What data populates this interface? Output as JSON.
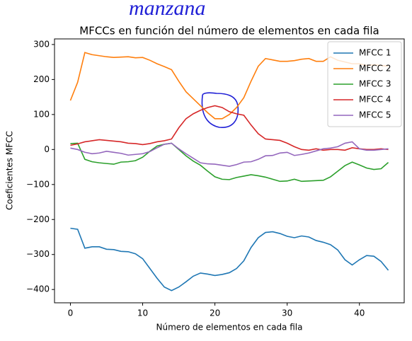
{
  "annotation": "manzana",
  "chart_data": {
    "type": "line",
    "title": "MFCCs en función del número de elementos en cada fila",
    "xlabel": "Número de elementos en cada fila",
    "ylabel": "Coeficientes MFCC",
    "x": [
      0,
      1,
      2,
      3,
      4,
      5,
      6,
      7,
      8,
      9,
      10,
      11,
      12,
      13,
      14,
      15,
      16,
      17,
      18,
      19,
      20,
      21,
      22,
      23,
      24,
      25,
      26,
      27,
      28,
      29,
      30,
      31,
      32,
      33,
      34,
      35,
      36,
      37,
      38,
      39,
      40,
      41,
      42,
      43,
      44
    ],
    "xlim": [
      -2.2,
      46.2
    ],
    "xticks": [
      0,
      10,
      20,
      30,
      40
    ],
    "ylim": [
      -438,
      316
    ],
    "yticks": [
      {
        "value": -400,
        "label": "−400"
      },
      {
        "value": -300,
        "label": "−300"
      },
      {
        "value": -200,
        "label": "−200"
      },
      {
        "value": -100,
        "label": "−100"
      },
      0,
      100,
      200,
      300
    ],
    "legend": "upper right",
    "series": [
      {
        "name": "MFCC 1",
        "color": "#1f77b4",
        "values": [
          -225,
          -228,
          -282,
          -278,
          -278,
          -285,
          -286,
          -291,
          -292,
          -298,
          -312,
          -340,
          -368,
          -393,
          -403,
          -393,
          -378,
          -362,
          -353,
          -356,
          -360,
          -357,
          -352,
          -340,
          -318,
          -280,
          -252,
          -237,
          -235,
          -240,
          -248,
          -252,
          -247,
          -250,
          -260,
          -265,
          -272,
          -287,
          -315,
          -330,
          -315,
          -303,
          -305,
          -320,
          -345
        ]
      },
      {
        "name": "MFCC 2",
        "color": "#ff7f0e",
        "values": [
          140,
          192,
          277,
          271,
          268,
          265,
          263,
          264,
          265,
          262,
          263,
          255,
          245,
          237,
          228,
          195,
          165,
          145,
          125,
          105,
          88,
          88,
          100,
          120,
          148,
          195,
          238,
          260,
          256,
          252,
          252,
          254,
          258,
          260,
          252,
          252,
          265,
          255,
          250,
          245,
          245,
          240,
          242,
          240,
          238
        ]
      },
      {
        "name": "MFCC 3",
        "color": "#2ca02c",
        "values": [
          17,
          18,
          -28,
          -35,
          -38,
          -40,
          -42,
          -36,
          -35,
          -32,
          -22,
          -5,
          10,
          15,
          18,
          0,
          -18,
          -33,
          -45,
          -62,
          -78,
          -85,
          -86,
          -80,
          -76,
          -72,
          -75,
          -79,
          -85,
          -91,
          -90,
          -85,
          -91,
          -90,
          -89,
          -88,
          -78,
          -62,
          -46,
          -36,
          -44,
          -53,
          -57,
          -55,
          -37
        ]
      },
      {
        "name": "MFCC 4",
        "color": "#d62728",
        "values": [
          12,
          16,
          22,
          25,
          28,
          26,
          24,
          22,
          18,
          17,
          14,
          17,
          22,
          25,
          30,
          62,
          88,
          102,
          112,
          120,
          125,
          120,
          108,
          102,
          98,
          70,
          45,
          30,
          28,
          26,
          18,
          8,
          0,
          -2,
          2,
          -2,
          0,
          0,
          -2,
          5,
          2,
          0,
          0,
          2,
          0
        ]
      },
      {
        "name": "MFCC 5",
        "color": "#9467bd",
        "values": [
          4,
          0,
          -8,
          -12,
          -10,
          -5,
          -8,
          -11,
          -16,
          -14,
          -12,
          -6,
          5,
          15,
          18,
          2,
          -12,
          -25,
          -38,
          -41,
          -42,
          -45,
          -48,
          -43,
          -36,
          -35,
          -28,
          -18,
          -17,
          -10,
          -8,
          -17,
          -14,
          -10,
          -4,
          2,
          4,
          8,
          18,
          22,
          2,
          -2,
          -2,
          0,
          2
        ]
      }
    ]
  }
}
